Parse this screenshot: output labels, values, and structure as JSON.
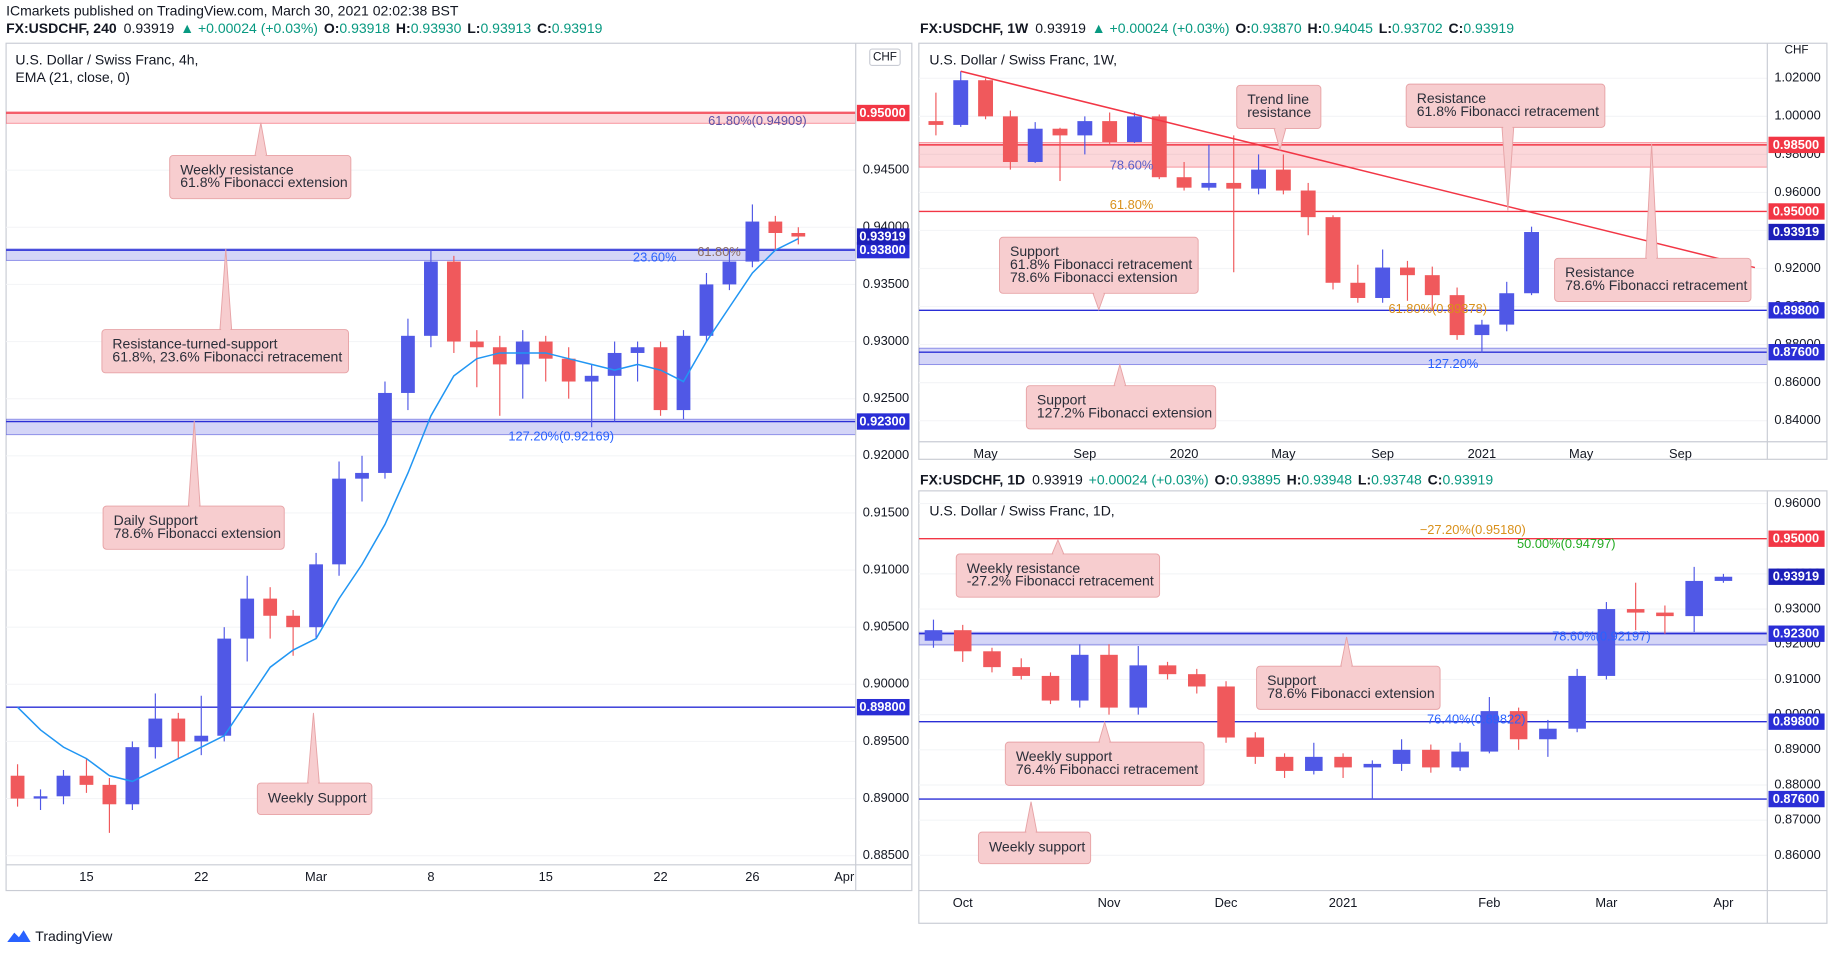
{
  "header": {
    "publisher": "ICmarkets published on TradingView.com, March 30, 2021 02:02:38 BST"
  },
  "footer": {
    "brand": "TradingView"
  },
  "chart_data": [
    {
      "type": "candlestick",
      "info": {
        "symbol": "FX:USDCHF, 240",
        "last": "0.93919",
        "change": "▲ +0.00024 (+0.03%)",
        "ohlc": [
          {
            "label": "O:",
            "value": "0.93918"
          },
          {
            "label": "H:",
            "value": "0.93930"
          },
          {
            "label": "L:",
            "value": "0.93913"
          },
          {
            "label": "C:",
            "value": "0.93919"
          }
        ]
      },
      "title": "U.S. Dollar / Swiss Franc, 4h,",
      "subtitle": "EMA (21, close, 0)",
      "currency": "CHF",
      "up_color": "#5058e6",
      "down_color": "#f0595c",
      "categories": [
        null,
        null,
        null,
        "15",
        null,
        null,
        null,
        null,
        "22",
        null,
        null,
        null,
        null,
        "Mar",
        null,
        null,
        null,
        null,
        "8",
        null,
        null,
        null,
        null,
        "15",
        null,
        null,
        null,
        null,
        "22",
        null,
        null,
        null,
        "26",
        null,
        null,
        null,
        "Apr"
      ],
      "open": [
        0.892,
        0.89,
        0.8902,
        0.892,
        0.8912,
        0.8895,
        0.8945,
        0.897,
        0.895,
        0.8955,
        0.904,
        0.9075,
        0.906,
        0.905,
        0.9105,
        0.918,
        0.9185,
        0.9255,
        0.9305,
        0.937,
        0.93,
        0.9295,
        0.928,
        0.93,
        0.9285,
        0.9265,
        0.927,
        0.929,
        0.9295,
        0.924,
        0.9305,
        0.935,
        0.937,
        0.9405,
        0.9395,
        null,
        null
      ],
      "high": [
        0.893,
        0.8908,
        0.8925,
        0.8935,
        0.8918,
        0.895,
        0.8992,
        0.8975,
        0.899,
        0.905,
        0.9095,
        0.9085,
        0.9065,
        0.9115,
        0.9195,
        0.92,
        0.9265,
        0.932,
        0.938,
        0.9375,
        0.931,
        0.9305,
        0.931,
        0.9305,
        0.9295,
        0.928,
        0.93,
        0.93,
        0.93,
        0.931,
        0.936,
        0.938,
        0.942,
        0.941,
        0.94,
        null,
        null
      ],
      "low": [
        0.8893,
        0.889,
        0.8895,
        0.8905,
        0.887,
        0.889,
        0.8935,
        0.8935,
        0.8938,
        0.895,
        0.902,
        0.904,
        0.9025,
        0.904,
        0.9095,
        0.916,
        0.918,
        0.924,
        0.9295,
        0.929,
        0.926,
        0.9235,
        0.925,
        0.9265,
        0.925,
        0.9225,
        0.923,
        0.9265,
        0.9235,
        0.9232,
        0.93,
        0.9345,
        0.9365,
        0.938,
        0.9385,
        null,
        null
      ],
      "close": [
        0.89,
        0.8902,
        0.892,
        0.8912,
        0.8895,
        0.8945,
        0.897,
        0.895,
        0.8955,
        0.904,
        0.9075,
        0.906,
        0.905,
        0.9105,
        0.918,
        0.9185,
        0.9255,
        0.9305,
        0.937,
        0.93,
        0.9295,
        0.928,
        0.93,
        0.9285,
        0.9265,
        0.927,
        0.929,
        0.9295,
        0.924,
        0.9305,
        0.935,
        0.937,
        0.9405,
        0.9395,
        0.93919,
        null,
        null
      ],
      "indicator": {
        "color": "#2196f3",
        "values": [
          0.898,
          0.896,
          0.8945,
          0.8935,
          0.892,
          0.8915,
          0.8925,
          0.8935,
          0.8945,
          0.8955,
          0.8985,
          0.9015,
          0.903,
          0.904,
          0.9075,
          0.9105,
          0.914,
          0.9185,
          0.9235,
          0.927,
          0.9285,
          0.929,
          0.929,
          0.929,
          0.9285,
          0.928,
          0.9275,
          0.928,
          0.9275,
          0.9265,
          0.93,
          0.933,
          0.936,
          0.938,
          0.939,
          null,
          null
        ]
      },
      "ylim": [
        0.8842,
        0.9558
      ],
      "yticks": [
        {
          "value": 0.885,
          "label": "0.88500"
        },
        {
          "value": 0.89,
          "label": "0.89000"
        },
        {
          "value": 0.895,
          "label": "0.89500"
        },
        {
          "value": 0.9,
          "label": "0.90000"
        },
        {
          "value": 0.905,
          "label": "0.90500"
        },
        {
          "value": 0.91,
          "label": "0.91000"
        },
        {
          "value": 0.915,
          "label": "0.91500"
        },
        {
          "value": 0.92,
          "label": "0.92000"
        },
        {
          "value": 0.925,
          "label": "0.92500"
        },
        {
          "value": 0.93,
          "label": "0.93000"
        },
        {
          "value": 0.935,
          "label": "0.93500"
        },
        {
          "value": 0.94,
          "label": "0.94000"
        },
        {
          "value": 0.945,
          "label": "0.94500"
        }
      ],
      "grid": true,
      "zones": [
        {
          "range": [
            0.9491,
            0.9501
          ],
          "color": "#f23645"
        },
        {
          "range": [
            0.9371,
            0.9381
          ],
          "color": "#2a2ed6"
        },
        {
          "range": [
            0.92185,
            0.9232
          ],
          "color": "#2a2ed6"
        }
      ],
      "levels": [
        {
          "value": 0.95,
          "label": "0.95000",
          "color": "#f23645"
        },
        {
          "value": 0.938,
          "label": "0.93800",
          "color": "#2a2ed6"
        },
        {
          "value": 0.923,
          "label": "0.92300",
          "color": "#2a2ed6"
        },
        {
          "value": 0.898,
          "label": "0.89800",
          "color": "#2a2ed6"
        }
      ],
      "last_price": {
        "value": 0.93919,
        "label": "0.93919",
        "color": "#1c1fb8"
      },
      "fib_labels": [
        {
          "text": "61.80%(0.94909)",
          "color": "#5d4fa3"
        },
        {
          "text": "23.60%",
          "color": "#2962ff"
        },
        {
          "text": "61.80%",
          "color": "#8d6e63"
        },
        {
          "text": "127.20%(0.92169)",
          "color": "#2962ff"
        }
      ],
      "annotations": [
        {
          "lines": [
            "Weekly resistance",
            "61.8% Fibonacci extension"
          ]
        },
        {
          "lines": [
            "Resistance-turned-support",
            "61.8%, 23.6% Fibonacci retracement"
          ]
        },
        {
          "lines": [
            "Daily Support",
            "78.6% Fibonacci extension"
          ]
        },
        {
          "lines": [
            "Weekly Support"
          ]
        }
      ]
    },
    {
      "type": "candlestick",
      "info": {
        "symbol": "FX:USDCHF, 1W",
        "last": "0.93919",
        "change": "▲ +0.00024 (+0.03%)",
        "ohlc": [
          {
            "label": "O:",
            "value": "0.93870"
          },
          {
            "label": "H:",
            "value": "0.94045"
          },
          {
            "label": "L:",
            "value": "0.93702"
          },
          {
            "label": "C:",
            "value": "0.93919"
          }
        ]
      },
      "title": "U.S. Dollar / Swiss Franc, 1W,",
      "currency": "CHF",
      "up_color": "#5058e6",
      "down_color": "#f0595c",
      "categories": [
        null,
        null,
        "May",
        null,
        null,
        null,
        "Sep",
        null,
        null,
        null,
        "2020",
        null,
        null,
        null,
        "May",
        null,
        null,
        null,
        "Sep",
        null,
        null,
        null,
        "2021",
        null,
        null,
        null,
        "May",
        null,
        null,
        null,
        "Sep",
        null,
        null,
        null
      ],
      "open": [
        0.9975,
        0.9955,
        1.019,
        1.0,
        0.976,
        0.9935,
        0.99,
        0.9975,
        0.9865,
        1.0,
        0.968,
        0.9625,
        0.965,
        0.962,
        0.972,
        0.961,
        0.947,
        0.9125,
        0.9045,
        0.9205,
        0.9165,
        0.906,
        0.885,
        0.8905,
        0.907,
        null,
        null,
        null,
        null,
        null,
        null,
        null,
        null,
        null
      ],
      "high": [
        1.0125,
        1.0237,
        1.02,
        1.003,
        0.997,
        0.994,
        1.0,
        1.002,
        1.002,
        1.001,
        0.976,
        0.985,
        0.99,
        0.98,
        0.98,
        0.965,
        0.948,
        0.922,
        0.93,
        0.924,
        0.921,
        0.91,
        0.893,
        0.913,
        0.942,
        null,
        null,
        null,
        null,
        null,
        null,
        null,
        null,
        null
      ],
      "low": [
        0.99,
        0.9945,
        0.9985,
        0.972,
        0.9755,
        0.966,
        0.98,
        0.985,
        0.986,
        0.967,
        0.961,
        0.961,
        0.918,
        0.959,
        0.959,
        0.9375,
        0.909,
        0.902,
        0.902,
        0.903,
        0.898,
        0.8825,
        0.8758,
        0.887,
        0.906,
        null,
        null,
        null,
        null,
        null,
        null,
        null,
        null,
        null
      ],
      "close": [
        0.9955,
        1.019,
        1.0,
        0.976,
        0.9935,
        0.99,
        0.9975,
        0.9865,
        1.0,
        0.968,
        0.9625,
        0.965,
        0.962,
        0.972,
        0.961,
        0.947,
        0.9125,
        0.9045,
        0.9205,
        0.9165,
        0.906,
        0.885,
        0.8905,
        0.907,
        0.93919,
        null,
        null,
        null,
        null,
        null,
        null,
        null,
        null,
        null
      ],
      "trendline": {
        "color": "#f23645",
        "start": 1.0237,
        "end": 0.9205
      },
      "ylim": [
        0.8289,
        1.0366
      ],
      "yticks": [
        {
          "value": 0.84,
          "label": "0.84000"
        },
        {
          "value": 0.86,
          "label": "0.86000"
        },
        {
          "value": 0.88,
          "label": "0.88000"
        },
        {
          "value": 0.9,
          "label": "0.90000"
        },
        {
          "value": 0.92,
          "label": "0.92000"
        },
        {
          "value": 0.94,
          "label": "0.94000"
        },
        {
          "value": 0.96,
          "label": "0.96000"
        },
        {
          "value": 0.98,
          "label": "0.98000"
        },
        {
          "value": 1,
          "label": "1.00000"
        },
        {
          "value": 1.02,
          "label": "1.02000"
        }
      ],
      "grid": true,
      "zones": [
        {
          "range": [
            0.9733,
            0.9862
          ],
          "color": "#f23645"
        },
        {
          "range": [
            0.8695,
            0.8781
          ],
          "color": "#2a2ed6"
        }
      ],
      "levels": [
        {
          "value": 0.985,
          "label": "0.98500",
          "color": "#f23645"
        },
        {
          "value": 0.95,
          "label": "0.95000",
          "color": "#f23645"
        },
        {
          "value": 0.898,
          "label": "0.89800",
          "color": "#2a2ed6"
        },
        {
          "value": 0.876,
          "label": "0.87600",
          "color": "#2a2ed6"
        }
      ],
      "last_price": {
        "value": 0.93919,
        "label": "0.93919",
        "color": "#1c1fb8"
      },
      "fib_labels": [
        {
          "text": "78.60%",
          "color": "#5b5fc7"
        },
        {
          "text": "61.80%",
          "color": "#d9901a"
        },
        {
          "text": "61.80%(0.89378)",
          "color": "#d9901a"
        },
        {
          "text": "127.20%",
          "color": "#2962ff"
        }
      ],
      "annotations": [
        {
          "lines": [
            "Trend line",
            "resistance"
          ]
        },
        {
          "lines": [
            "Resistance",
            "61.8% Fibonacci retracement"
          ]
        },
        {
          "lines": [
            "Support",
            "61.8% Fibonacci retracement",
            "78.6% Fibonacci extension"
          ]
        },
        {
          "lines": [
            "Resistance",
            "78.6% Fibonacci retracement"
          ]
        },
        {
          "lines": [
            "Support",
            "127.2% Fibonacci extension"
          ]
        }
      ]
    },
    {
      "type": "candlestick",
      "info": {
        "symbol": "FX:USDCHF, 1D",
        "last": "0.93919",
        "change": "+0.00024 (+0.03%)",
        "ohlc": [
          {
            "label": "O:",
            "value": "0.93895"
          },
          {
            "label": "H:",
            "value": "0.93948"
          },
          {
            "label": "L:",
            "value": "0.93748"
          },
          {
            "label": "C:",
            "value": "0.93919"
          }
        ]
      },
      "title": "U.S. Dollar / Swiss Franc, 1D,",
      "up_color": "#5058e6",
      "down_color": "#f0595c",
      "categories": [
        null,
        "Oct",
        null,
        null,
        null,
        null,
        "Nov",
        null,
        null,
        null,
        "Dec",
        null,
        null,
        null,
        "2021",
        null,
        null,
        null,
        null,
        "Feb",
        null,
        null,
        null,
        "Mar",
        null,
        null,
        null,
        "Apr",
        null
      ],
      "open": [
        0.921,
        0.924,
        0.918,
        0.9135,
        0.911,
        0.904,
        0.917,
        0.902,
        0.914,
        0.9115,
        0.908,
        0.8935,
        0.888,
        0.884,
        0.888,
        0.885,
        0.886,
        0.89,
        0.885,
        0.8895,
        0.901,
        0.893,
        0.896,
        0.911,
        0.93,
        0.929,
        0.928,
        0.938,
        null
      ],
      "high": [
        0.927,
        0.9255,
        0.919,
        0.916,
        0.912,
        0.92,
        0.92,
        0.9195,
        0.915,
        0.913,
        0.9095,
        0.895,
        0.889,
        0.892,
        0.889,
        0.887,
        0.893,
        0.8915,
        0.892,
        0.905,
        0.902,
        0.8985,
        0.913,
        0.932,
        0.9375,
        0.931,
        0.942,
        0.94,
        null
      ],
      "low": [
        0.919,
        0.915,
        0.912,
        0.91,
        0.903,
        0.902,
        0.9,
        0.9,
        0.91,
        0.906,
        0.892,
        0.886,
        0.882,
        0.883,
        0.882,
        0.8758,
        0.884,
        0.8835,
        0.884,
        0.889,
        0.89,
        0.888,
        0.895,
        0.91,
        0.924,
        0.923,
        0.9235,
        0.9375,
        null
      ],
      "close": [
        0.924,
        0.918,
        0.9135,
        0.911,
        0.904,
        0.917,
        0.902,
        0.914,
        0.9115,
        0.908,
        0.8935,
        0.888,
        0.884,
        0.888,
        0.885,
        0.886,
        0.89,
        0.885,
        0.8895,
        0.901,
        0.893,
        0.896,
        0.911,
        0.93,
        0.929,
        0.928,
        0.938,
        0.93919,
        null
      ],
      "ylim": [
        0.85,
        0.9636
      ],
      "yticks": [
        {
          "value": 0.86,
          "label": "0.86000"
        },
        {
          "value": 0.87,
          "label": "0.87000"
        },
        {
          "value": 0.88,
          "label": "0.88000"
        },
        {
          "value": 0.89,
          "label": "0.89000"
        },
        {
          "value": 0.9,
          "label": "0.90000"
        },
        {
          "value": 0.91,
          "label": "0.91000"
        },
        {
          "value": 0.92,
          "label": "0.92000"
        },
        {
          "value": 0.93,
          "label": "0.93000"
        },
        {
          "value": 0.94,
          "label": "0.94000"
        },
        {
          "value": 0.95,
          "label": "0.95000"
        },
        {
          "value": 0.96,
          "label": "0.96000"
        }
      ],
      "grid": true,
      "zones": [
        {
          "range": [
            0.9198,
            0.9234
          ],
          "color": "#2a2ed6"
        }
      ],
      "levels": [
        {
          "value": 0.95,
          "label": "0.95000",
          "color": "#f23645"
        },
        {
          "value": 0.923,
          "label": "0.92300",
          "color": "#2a2ed6"
        },
        {
          "value": 0.898,
          "label": "0.89800",
          "color": "#2a2ed6"
        },
        {
          "value": 0.876,
          "label": "0.87600",
          "color": "#2a2ed6"
        }
      ],
      "last_price": {
        "value": 0.93919,
        "label": "0.93919",
        "color": "#1c1fb8"
      },
      "fib_labels": [
        {
          "text": "−27.20%(0.95180)",
          "color": "#d9901a"
        },
        {
          "text": "50.00%(0.94797)",
          "color": "#22ab22"
        },
        {
          "text": "78.60%(0.92197)",
          "color": "#2962ff"
        },
        {
          "text": "76.40%(0.89822)",
          "color": "#2962ff"
        }
      ],
      "annotations": [
        {
          "lines": [
            "Weekly resistance",
            "-27.2% Fibonacci retracement"
          ]
        },
        {
          "lines": [
            "Support",
            "78.6% Fibonacci extension"
          ]
        },
        {
          "lines": [
            "Weekly support",
            "76.4% Fibonacci retracement"
          ]
        },
        {
          "lines": [
            "Weekly support"
          ]
        }
      ]
    }
  ]
}
